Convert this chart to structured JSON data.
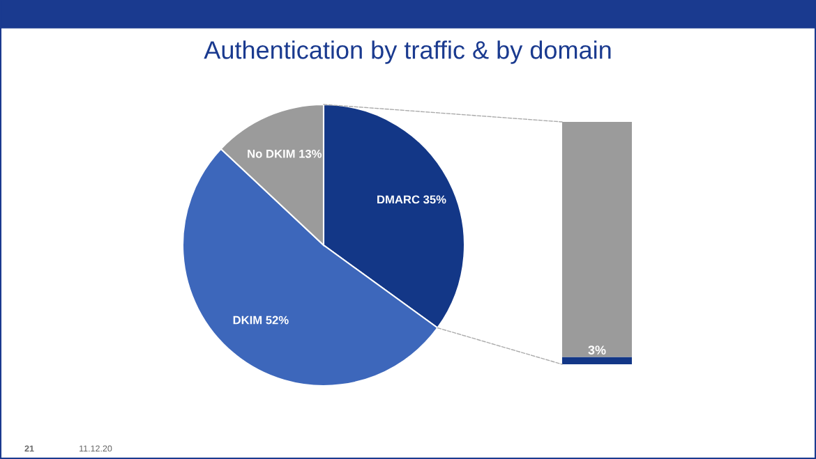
{
  "chart_data": [
    {
      "type": "pie",
      "title": "Authentication by traffic & by domain",
      "categories": [
        "DMARC",
        "DKIM",
        "No DKIM"
      ],
      "values": [
        35,
        52,
        13
      ],
      "value_labels": [
        "35%",
        "52%",
        "13%"
      ],
      "colors": [
        "#133787",
        "#3d67bb",
        "#9b9b9b"
      ],
      "annotations": [
        "21",
        "11.12.20"
      ]
    },
    {
      "type": "bar",
      "stacked": true,
      "categories": [
        null
      ],
      "series": [
        {
          "color": "#133787",
          "values": [
            3
          ],
          "value_labels": [
            "3%"
          ]
        },
        {
          "color": "#9b9b9b",
          "values": [
            97
          ]
        }
      ]
    }
  ]
}
